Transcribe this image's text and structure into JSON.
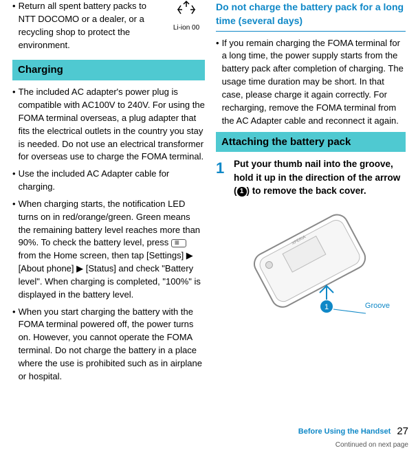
{
  "left": {
    "recycle_label": "Li-ion 00",
    "bullet_top": "Return all spent battery packs to NTT DOCOMO or a dealer, or a recycling shop to protect the environment.",
    "header": "Charging",
    "bullets": [
      "The included AC adapter's power plug is compatible with AC100V to 240V. For using the FOMA terminal overseas, a plug adapter that fits the electrical outlets in the country you stay is needed. Do not use an electrical transformer for overseas use to charge the FOMA terminal.",
      "Use the included AC Adapter cable for charging.",
      "When charging starts, the notification LED turns on in red/orange/green. Green means the remaining battery level reaches more than 90%. To check the battery level, press ___KEY___ from the Home screen, then tap [Settings] ▶ [About phone] ▶ [Status] and check \"Battery level\". When charging is completed, \"100%\" is displayed in the battery level.",
      "When you start charging the battery with the FOMA terminal powered off, the power turns on. However, you cannot operate the FOMA terminal. Do not charge the battery in a place where the use is prohibited such as in airplane or hospital."
    ]
  },
  "right": {
    "sub_header": "Do not charge the battery pack for a long time (several days)",
    "sub_bullet": "If you remain charging the FOMA terminal for a long time, the power supply starts from the battery pack after completion of charging. The usage time duration may be short. In that case, please charge it again correctly. For recharging, remove the FOMA terminal from the AC Adapter cable and reconnect it again.",
    "header": "Attaching the battery pack",
    "step_num": "1",
    "step_text_a": "Put your thumb nail into the groove, hold it up in the direction of the arrow (",
    "step_text_b": ") to remove the back cover.",
    "circle_in_text": "1",
    "groove_label": "Groove",
    "figure_circle": "1"
  },
  "footer": {
    "section": "Before Using the Handset",
    "page": "27",
    "continued": "Continued on next page"
  }
}
